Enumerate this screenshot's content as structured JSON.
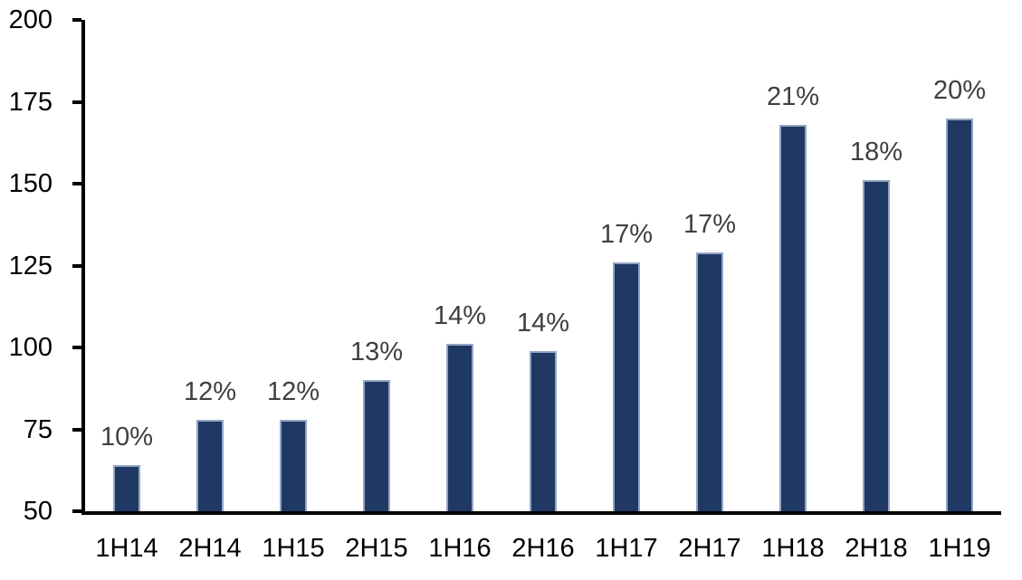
{
  "chart_data": {
    "type": "bar",
    "title": "",
    "xlabel": "",
    "ylabel": "",
    "categories": [
      "1H14",
      "2H14",
      "1H15",
      "2H15",
      "1H16",
      "2H16",
      "1H17",
      "2H17",
      "1H18",
      "2H18",
      "1H19"
    ],
    "values": [
      64,
      78,
      78,
      90,
      101,
      99,
      126,
      129,
      168,
      151,
      170
    ],
    "bar_labels": [
      "10%",
      "12%",
      "12%",
      "13%",
      "14%",
      "14%",
      "17%",
      "17%",
      "21%",
      "18%",
      "20%"
    ],
    "ylim": [
      50,
      200
    ],
    "yticks": [
      50,
      75,
      100,
      125,
      150,
      175,
      200
    ],
    "grid": false,
    "legend": null,
    "label_position": "outside-end",
    "colors": {
      "bar_fill": "#1f3864",
      "bar_border": "#95a5c2",
      "bar_label": "#3f3f3f",
      "axis": "#000000",
      "tick_label": "#000000",
      "background": "#ffffff"
    }
  }
}
